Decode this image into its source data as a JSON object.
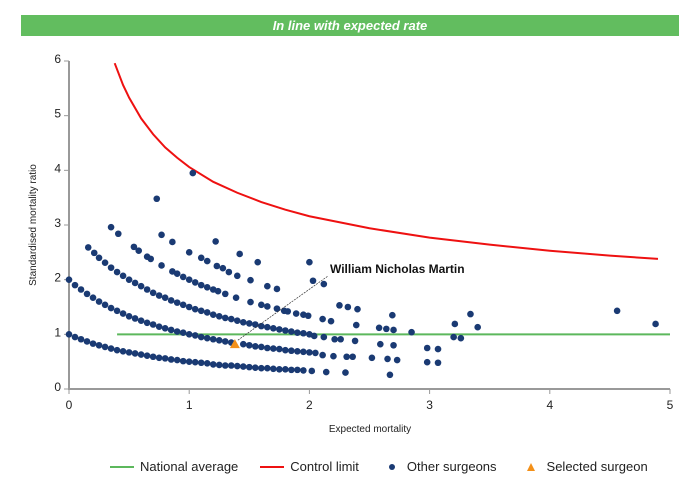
{
  "banner": {
    "text": "In line with expected rate",
    "color": "#62bd5f"
  },
  "chart_data": {
    "type": "scatter",
    "xlabel": "Expected mortality",
    "ylabel": "Standardised mortality ratio",
    "xlim": [
      0,
      5
    ],
    "ylim": [
      0,
      6
    ],
    "xticks": [
      "0",
      "1",
      "2",
      "3",
      "4",
      "5"
    ],
    "yticks": [
      "0",
      "1",
      "2",
      "3",
      "4",
      "5",
      "6"
    ],
    "grid": false,
    "legend_placement": "bottom",
    "legend": [
      "National average",
      "Control limit",
      "Other surgeons",
      "Selected surgeon"
    ],
    "national_average": {
      "name": "National average",
      "color": "#5cb85c",
      "x": [
        0.4,
        5.0
      ],
      "y": 1.0
    },
    "control_limit": {
      "name": "Control limit",
      "color": "#ee1111",
      "points": [
        [
          0.38,
          5.96
        ],
        [
          0.45,
          5.56
        ],
        [
          0.5,
          5.33
        ],
        [
          0.6,
          4.95
        ],
        [
          0.7,
          4.66
        ],
        [
          0.8,
          4.42
        ],
        [
          0.9,
          4.23
        ],
        [
          1.0,
          4.06
        ],
        [
          1.2,
          3.79
        ],
        [
          1.4,
          3.59
        ],
        [
          1.6,
          3.42
        ],
        [
          1.8,
          3.28
        ],
        [
          2.0,
          3.16
        ],
        [
          2.5,
          2.94
        ],
        [
          3.0,
          2.77
        ],
        [
          3.5,
          2.64
        ],
        [
          4.0,
          2.53
        ],
        [
          4.5,
          2.44
        ],
        [
          4.9,
          2.38
        ]
      ]
    },
    "other_surgeons": {
      "name": "Other surgeons",
      "color": "#1a3a73",
      "points": [
        [
          0,
          1.0
        ],
        [
          0.05,
          0.95
        ],
        [
          0.1,
          0.91
        ],
        [
          0.15,
          0.87
        ],
        [
          0.2,
          0.83
        ],
        [
          0.25,
          0.8
        ],
        [
          0.3,
          0.77
        ],
        [
          0.35,
          0.74
        ],
        [
          0.4,
          0.71
        ],
        [
          0.45,
          0.69
        ],
        [
          0.5,
          0.67
        ],
        [
          0.55,
          0.65
        ],
        [
          0.6,
          0.63
        ],
        [
          0.65,
          0.61
        ],
        [
          0.7,
          0.59
        ],
        [
          0.75,
          0.57
        ],
        [
          0.8,
          0.56
        ],
        [
          0.85,
          0.54
        ],
        [
          0.9,
          0.53
        ],
        [
          0.95,
          0.51
        ],
        [
          1.0,
          0.5
        ],
        [
          1.05,
          0.49
        ],
        [
          1.1,
          0.48
        ],
        [
          1.15,
          0.47
        ],
        [
          1.2,
          0.45
        ],
        [
          1.25,
          0.44
        ],
        [
          1.3,
          0.43
        ],
        [
          1.35,
          0.43
        ],
        [
          1.4,
          0.42
        ],
        [
          1.45,
          0.41
        ],
        [
          1.5,
          0.4
        ],
        [
          1.55,
          0.39
        ],
        [
          1.6,
          0.38
        ],
        [
          1.65,
          0.38
        ],
        [
          1.7,
          0.37
        ],
        [
          1.75,
          0.36
        ],
        [
          1.8,
          0.36
        ],
        [
          1.85,
          0.35
        ],
        [
          1.9,
          0.35
        ],
        [
          1.95,
          0.34
        ],
        [
          2.02,
          0.33
        ],
        [
          2.14,
          0.31
        ],
        [
          2.3,
          0.3
        ],
        [
          2.67,
          0.26
        ],
        [
          0,
          2.0
        ],
        [
          0.05,
          1.9
        ],
        [
          0.1,
          1.82
        ],
        [
          0.15,
          1.74
        ],
        [
          0.2,
          1.67
        ],
        [
          0.25,
          1.6
        ],
        [
          0.3,
          1.54
        ],
        [
          0.35,
          1.48
        ],
        [
          0.4,
          1.43
        ],
        [
          0.45,
          1.38
        ],
        [
          0.5,
          1.33
        ],
        [
          0.55,
          1.29
        ],
        [
          0.6,
          1.25
        ],
        [
          0.65,
          1.21
        ],
        [
          0.7,
          1.18
        ],
        [
          0.75,
          1.14
        ],
        [
          0.8,
          1.11
        ],
        [
          0.85,
          1.08
        ],
        [
          0.9,
          1.05
        ],
        [
          0.95,
          1.03
        ],
        [
          1.0,
          1.0
        ],
        [
          1.05,
          0.98
        ],
        [
          1.1,
          0.95
        ],
        [
          1.15,
          0.93
        ],
        [
          1.2,
          0.91
        ],
        [
          1.25,
          0.89
        ],
        [
          1.3,
          0.87
        ],
        [
          1.35,
          0.85
        ],
        [
          1.45,
          0.82
        ],
        [
          1.5,
          0.8
        ],
        [
          1.55,
          0.78
        ],
        [
          1.6,
          0.77
        ],
        [
          1.65,
          0.75
        ],
        [
          1.7,
          0.74
        ],
        [
          1.75,
          0.73
        ],
        [
          1.8,
          0.71
        ],
        [
          1.85,
          0.7
        ],
        [
          1.9,
          0.69
        ],
        [
          1.95,
          0.68
        ],
        [
          2.0,
          0.67
        ],
        [
          2.05,
          0.66
        ],
        [
          2.11,
          0.62
        ],
        [
          2.2,
          0.6
        ],
        [
          2.31,
          0.59
        ],
        [
          2.36,
          0.59
        ],
        [
          2.52,
          0.57
        ],
        [
          2.65,
          0.55
        ],
        [
          2.73,
          0.53
        ],
        [
          2.98,
          0.49
        ],
        [
          3.07,
          0.48
        ],
        [
          0.16,
          2.59
        ],
        [
          0.21,
          2.49
        ],
        [
          0.25,
          2.4
        ],
        [
          0.3,
          2.31
        ],
        [
          0.35,
          2.22
        ],
        [
          0.4,
          2.14
        ],
        [
          0.45,
          2.07
        ],
        [
          0.5,
          2.0
        ],
        [
          0.55,
          1.94
        ],
        [
          0.6,
          1.88
        ],
        [
          0.65,
          1.82
        ],
        [
          0.7,
          1.76
        ],
        [
          0.75,
          1.71
        ],
        [
          0.8,
          1.67
        ],
        [
          0.85,
          1.62
        ],
        [
          0.9,
          1.58
        ],
        [
          0.95,
          1.54
        ],
        [
          1.0,
          1.5
        ],
        [
          1.05,
          1.46
        ],
        [
          1.1,
          1.43
        ],
        [
          1.15,
          1.4
        ],
        [
          1.2,
          1.36
        ],
        [
          1.25,
          1.33
        ],
        [
          1.3,
          1.3
        ],
        [
          1.35,
          1.28
        ],
        [
          1.4,
          1.25
        ],
        [
          1.45,
          1.22
        ],
        [
          1.5,
          1.2
        ],
        [
          1.55,
          1.18
        ],
        [
          1.6,
          1.15
        ],
        [
          1.65,
          1.13
        ],
        [
          1.7,
          1.11
        ],
        [
          1.75,
          1.09
        ],
        [
          1.8,
          1.07
        ],
        [
          1.85,
          1.05
        ],
        [
          1.9,
          1.03
        ],
        [
          1.95,
          1.02
        ],
        [
          2.0,
          1.0
        ],
        [
          2.04,
          0.97
        ],
        [
          2.12,
          0.95
        ],
        [
          2.21,
          0.91
        ],
        [
          2.26,
          0.91
        ],
        [
          2.38,
          0.88
        ],
        [
          2.59,
          0.82
        ],
        [
          2.7,
          0.8
        ],
        [
          2.98,
          0.75
        ],
        [
          3.07,
          0.73
        ],
        [
          0.35,
          2.96
        ],
        [
          0.41,
          2.84
        ],
        [
          0.54,
          2.6
        ],
        [
          0.58,
          2.53
        ],
        [
          0.65,
          2.42
        ],
        [
          0.68,
          2.38
        ],
        [
          0.77,
          2.26
        ],
        [
          0.86,
          2.15
        ],
        [
          0.9,
          2.11
        ],
        [
          0.95,
          2.05
        ],
        [
          1.0,
          2.0
        ],
        [
          1.05,
          1.95
        ],
        [
          1.1,
          1.9
        ],
        [
          1.15,
          1.86
        ],
        [
          1.2,
          1.82
        ],
        [
          1.24,
          1.79
        ],
        [
          1.3,
          1.74
        ],
        [
          1.39,
          1.67
        ],
        [
          1.51,
          1.59
        ],
        [
          1.6,
          1.54
        ],
        [
          1.65,
          1.51
        ],
        [
          1.73,
          1.47
        ],
        [
          1.79,
          1.43
        ],
        [
          1.82,
          1.42
        ],
        [
          1.89,
          1.38
        ],
        [
          1.95,
          1.36
        ],
        [
          1.99,
          1.34
        ],
        [
          2.11,
          1.28
        ],
        [
          2.18,
          1.24
        ],
        [
          2.39,
          1.17
        ],
        [
          2.58,
          1.12
        ],
        [
          2.64,
          1.1
        ],
        [
          2.7,
          1.08
        ],
        [
          2.85,
          1.04
        ],
        [
          3.2,
          0.95
        ],
        [
          3.26,
          0.93
        ],
        [
          0.77,
          2.82
        ],
        [
          0.86,
          2.69
        ],
        [
          1.0,
          2.5
        ],
        [
          1.1,
          2.4
        ],
        [
          1.15,
          2.34
        ],
        [
          1.23,
          2.25
        ],
        [
          1.28,
          2.21
        ],
        [
          1.33,
          2.14
        ],
        [
          1.4,
          2.07
        ],
        [
          1.51,
          1.99
        ],
        [
          1.65,
          1.88
        ],
        [
          1.73,
          1.83
        ],
        [
          2.25,
          1.53
        ],
        [
          2.32,
          1.5
        ],
        [
          2.4,
          1.46
        ],
        [
          2.69,
          1.35
        ],
        [
          3.21,
          1.19
        ],
        [
          3.4,
          1.13
        ],
        [
          0.73,
          3.48
        ],
        [
          1.22,
          2.7
        ],
        [
          1.42,
          2.47
        ],
        [
          1.57,
          2.32
        ],
        [
          2.03,
          1.98
        ],
        [
          2.12,
          1.92
        ],
        [
          3.34,
          1.37
        ],
        [
          2.0,
          2.32
        ],
        [
          4.88,
          1.19
        ],
        [
          1.03,
          3.95
        ],
        [
          4.56,
          1.43
        ]
      ]
    },
    "selected_surgeon": {
      "name": "Selected surgeon",
      "label": "William Nicholas Martin",
      "color": "#f39019",
      "x": 1.38,
      "y": 0.82
    }
  }
}
